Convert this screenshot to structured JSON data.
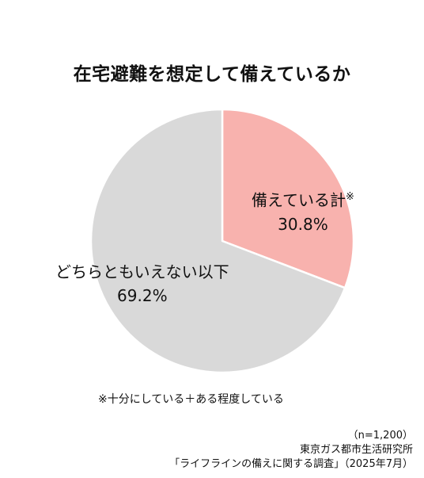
{
  "chart_data": {
    "type": "pie",
    "title": "在宅避難を想定して備えているか",
    "slices": [
      {
        "label": "備えている計",
        "marker": "※",
        "value": 30.8,
        "value_label": "30.8%",
        "color": "#f8b2ae"
      },
      {
        "label": "どちらともいえない以下",
        "marker": "",
        "value": 69.2,
        "value_label": "69.2%",
        "color": "#d9d9d9"
      }
    ],
    "start_angle_deg": 0,
    "direction": "clockwise",
    "edge_color": "#ffffff"
  },
  "footnote": "※十分にしている＋ある程度している",
  "source": {
    "sample": "（n=1,200）",
    "organization": "東京ガス都市生活研究所",
    "survey": "「ライフラインの備えに関する調査」（2025年7月）"
  }
}
